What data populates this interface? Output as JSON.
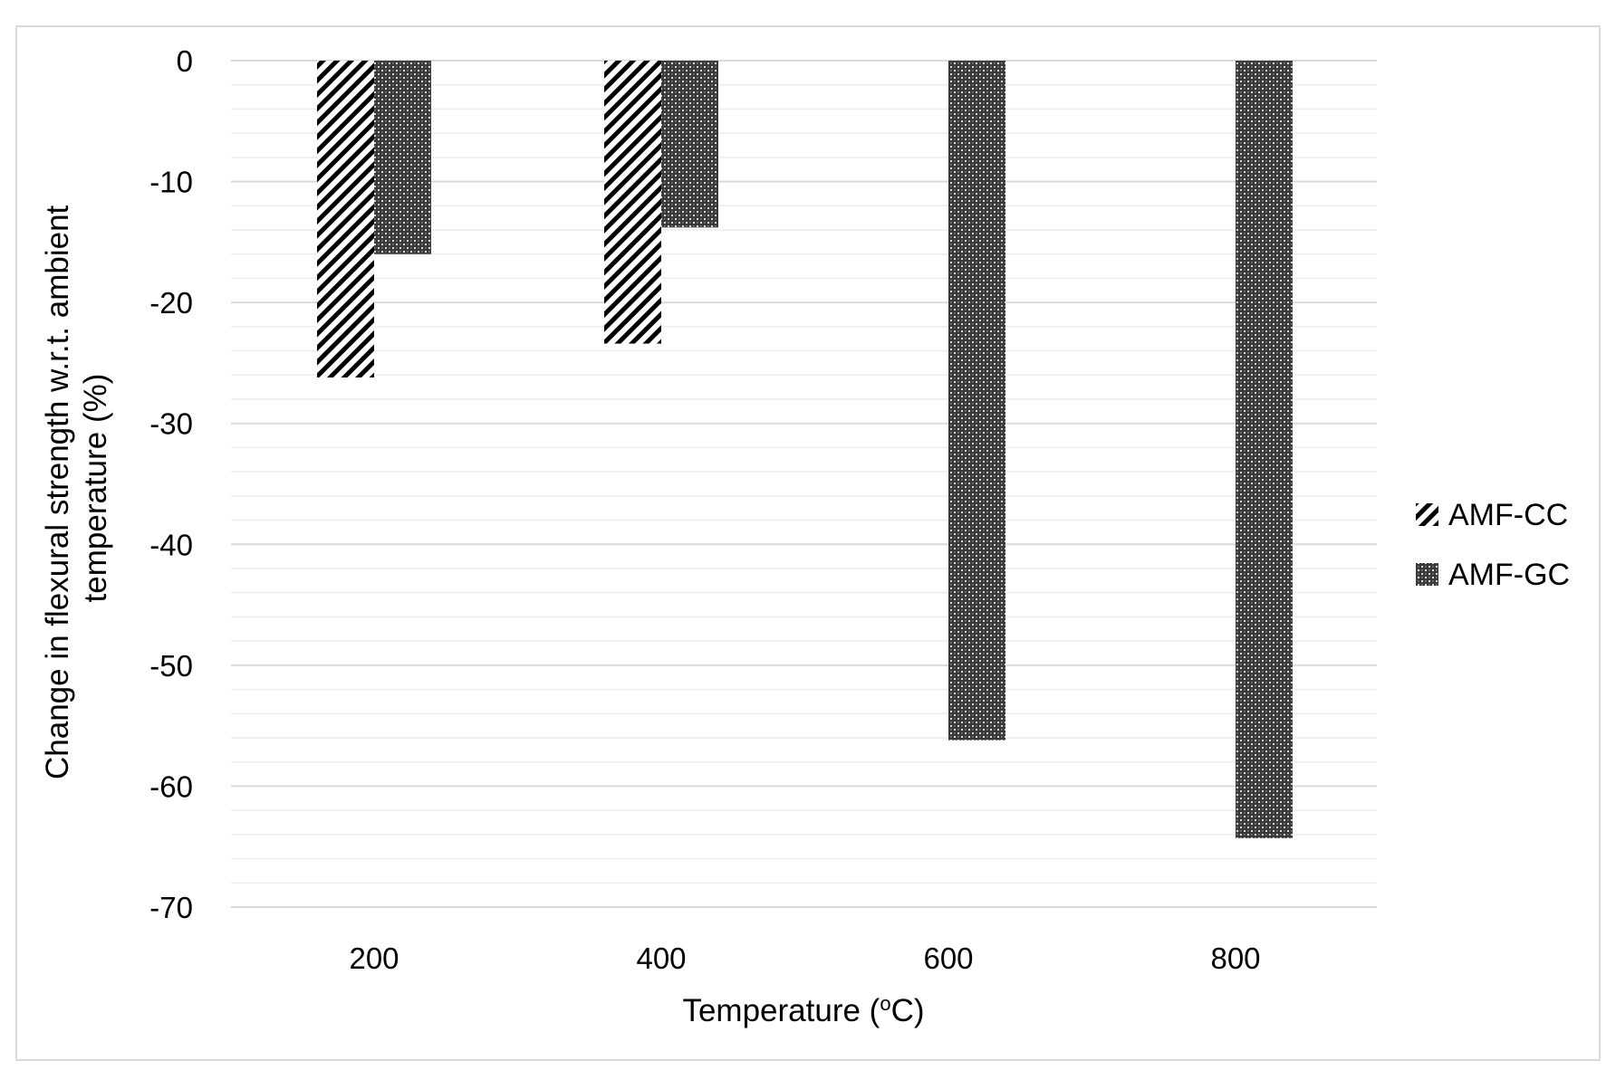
{
  "chart_data": {
    "type": "bar",
    "title": "",
    "xlabel_main": "Temperature (",
    "xlabel_sup": "o",
    "xlabel_end": "C)",
    "ylabel_line1": "Change in flexural strength w.r.t. ambient",
    "ylabel_line2": "temperature (%)",
    "categories": [
      "200",
      "400",
      "600",
      "800"
    ],
    "series": [
      {
        "name": "AMF-CC",
        "pattern": "diagonal-hatch",
        "values": [
          -26.2,
          -23.4,
          null,
          null
        ]
      },
      {
        "name": "AMF-GC",
        "pattern": "crosshatch-dots",
        "values": [
          -16.0,
          -13.8,
          -56.2,
          -64.3
        ]
      }
    ],
    "ylim": [
      -70,
      0
    ],
    "yticks": [
      "0",
      "-10",
      "-20",
      "-30",
      "-40",
      "-50",
      "-60",
      "-70"
    ],
    "major_step": 10,
    "minor_step": 2,
    "grid": true,
    "legend_position": "right",
    "colors": {
      "grid": "#d9d9d9",
      "bar": "#000000",
      "frame": "#d9d9d9"
    }
  }
}
